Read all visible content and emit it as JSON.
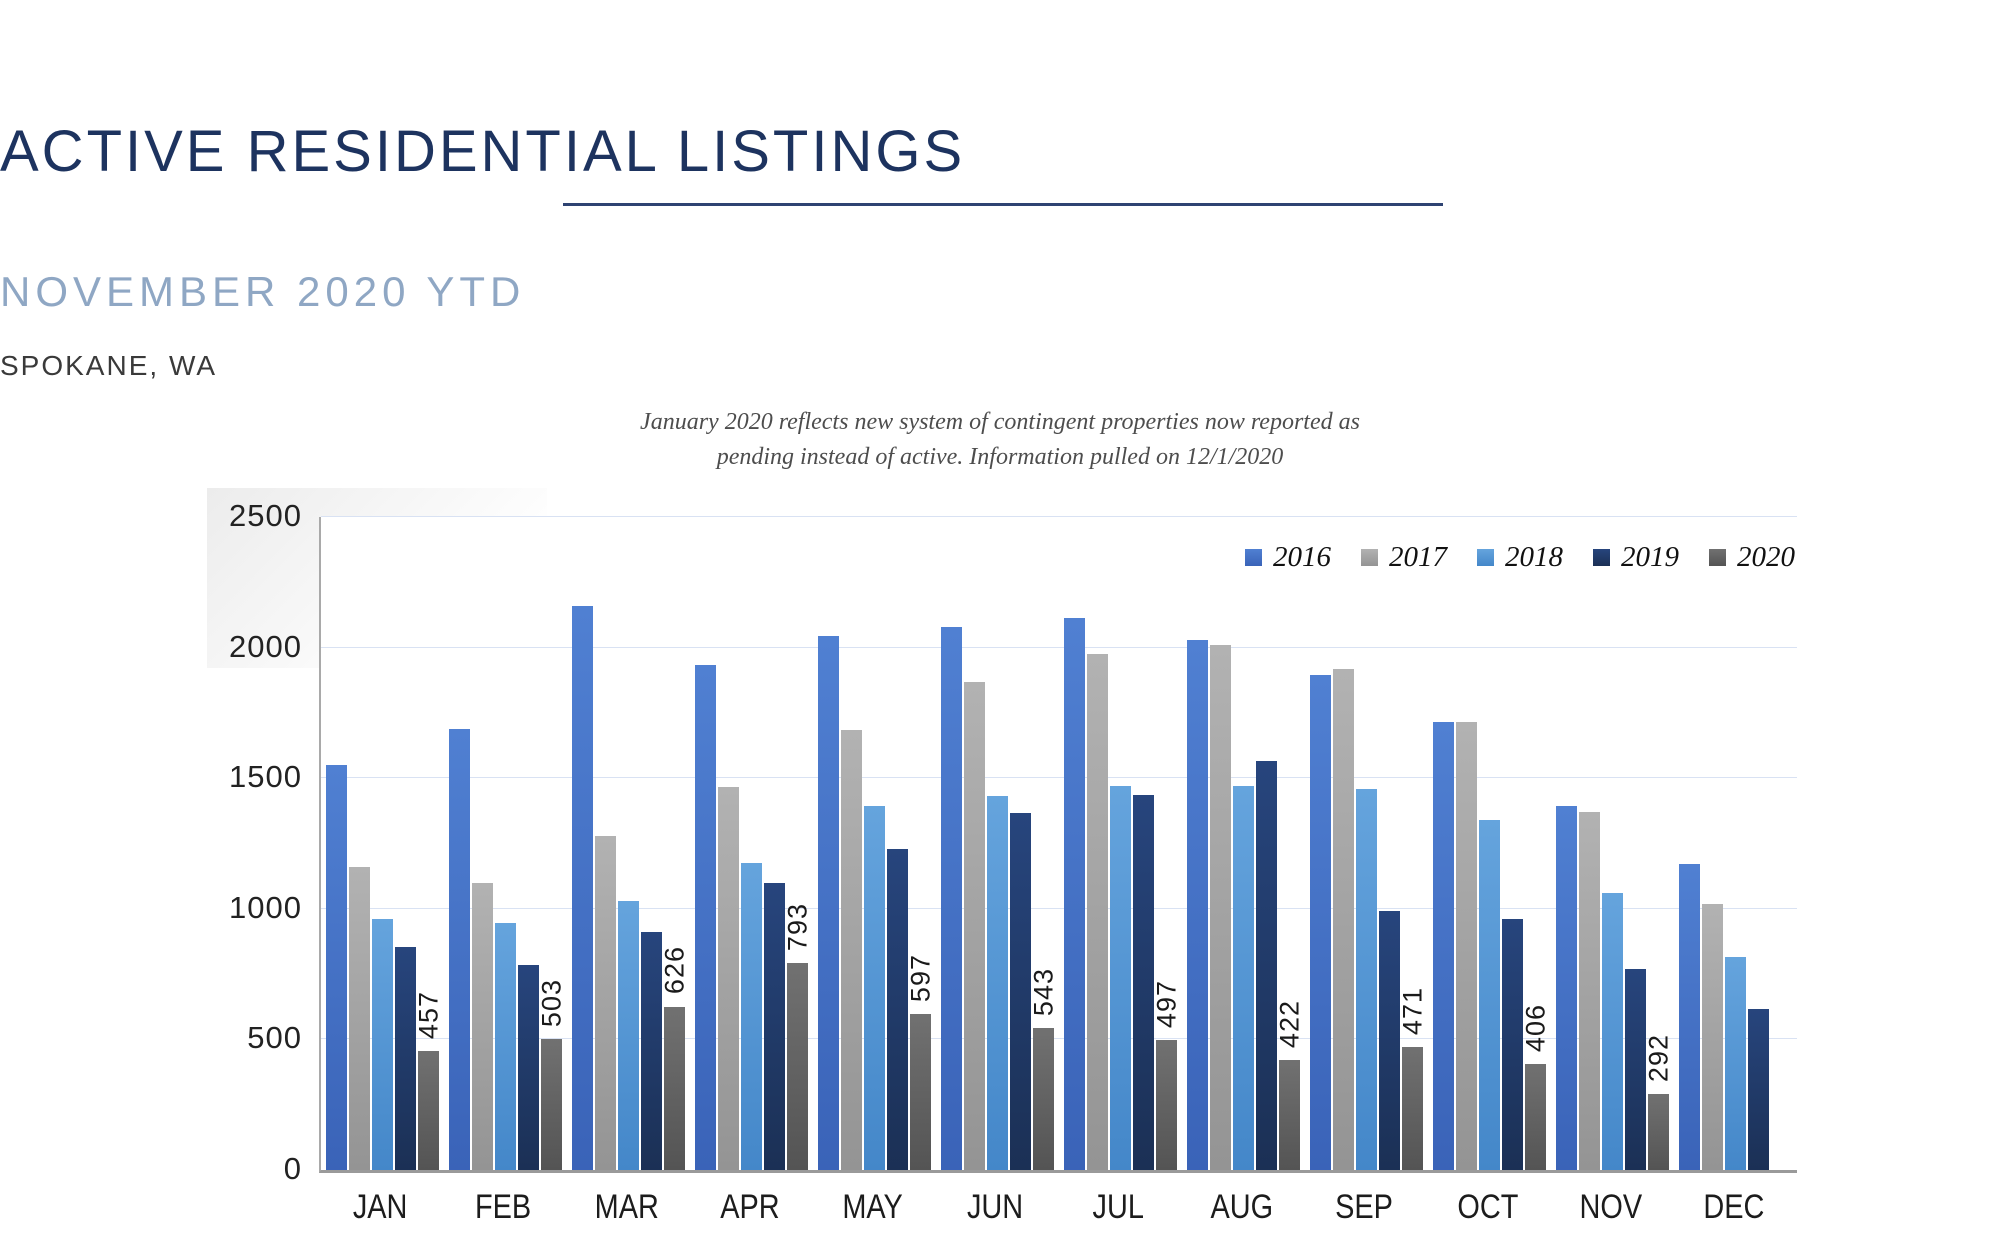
{
  "header": {
    "title": "ACTIVE RESIDENTIAL LISTINGS",
    "subtitle": "NOVEMBER 2020 YTD",
    "location": "SPOKANE, WA",
    "note_line1": "January 2020 reflects new system of contingent properties now reported as",
    "note_line2": "pending instead of active.  Information pulled on 12/1/2020",
    "title_color": "#1d335f",
    "subtitle_color": "#8fa7c4"
  },
  "chart_data": {
    "type": "bar",
    "title": "ACTIVE RESIDENTIAL LISTINGS",
    "subtitle": "NOVEMBER 2020 YTD",
    "categories": [
      "JAN",
      "FEB",
      "MAR",
      "APR",
      "MAY",
      "JUN",
      "JUL",
      "AUG",
      "SEP",
      "OCT",
      "NOV",
      "DEC"
    ],
    "series": [
      {
        "name": "2016",
        "color": "#4472c4",
        "color_top": "#5080d2",
        "color_bottom": "#3a63b8",
        "values": [
          1550,
          1690,
          2160,
          1935,
          2045,
          2080,
          2115,
          2030,
          1895,
          1715,
          1395,
          1170
        ]
      },
      {
        "name": "2017",
        "color": "#a6a6a6",
        "color_top": "#b2b2b2",
        "color_bottom": "#949494",
        "values": [
          1160,
          1100,
          1280,
          1465,
          1685,
          1870,
          1975,
          2010,
          1920,
          1715,
          1370,
          1020
        ]
      },
      {
        "name": "2018",
        "color": "#5b9bd5",
        "color_top": "#65a4dd",
        "color_bottom": "#4487c9",
        "values": [
          960,
          945,
          1030,
          1175,
          1395,
          1430,
          1470,
          1470,
          1460,
          1340,
          1060,
          815
        ]
      },
      {
        "name": "2019",
        "color": "#1f3864",
        "color_top": "#27457d",
        "color_bottom": "#1b3055",
        "values": [
          855,
          785,
          910,
          1100,
          1230,
          1365,
          1435,
          1565,
          990,
          960,
          770,
          615
        ]
      },
      {
        "name": "2020",
        "color": "#636363",
        "color_top": "#717171",
        "color_bottom": "#545454",
        "values": [
          457,
          503,
          626,
          793,
          597,
          543,
          497,
          422,
          471,
          406,
          292,
          null
        ],
        "show_data_labels": true
      }
    ],
    "data_labels_2020": [
      "457",
      "503",
      "626",
      "793",
      "597",
      "543",
      "497",
      "422",
      "471",
      "406",
      "292",
      ""
    ],
    "ylim": [
      0,
      2500
    ],
    "yticks": [
      0,
      500,
      1000,
      1500,
      2000,
      2500
    ],
    "grid": true,
    "gridline_color": "#d9e2f3",
    "legend_position": "top-right"
  }
}
